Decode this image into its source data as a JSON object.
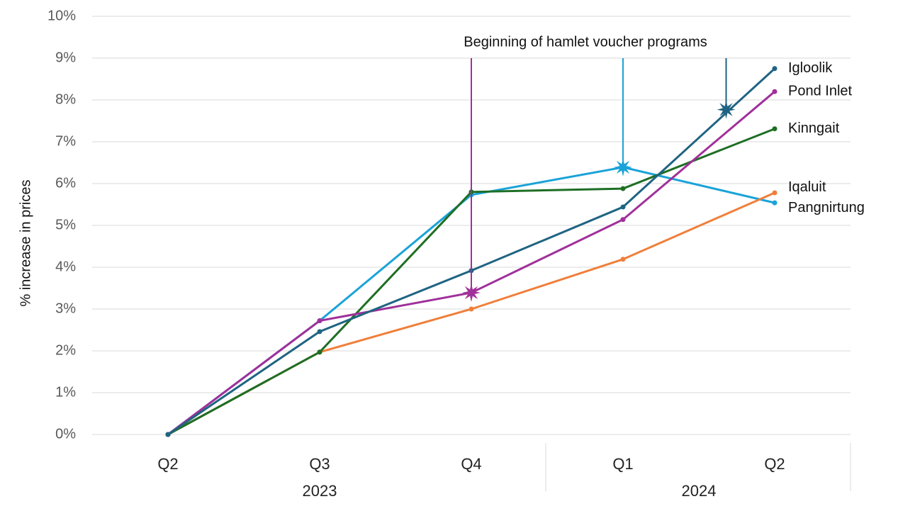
{
  "chart_data": {
    "type": "line",
    "annotation": "Beginning of hamlet voucher programs",
    "y_label": "% increase in prices",
    "categories": [
      "Q2",
      "Q3",
      "Q4",
      "Q1",
      "Q2"
    ],
    "groups": [
      {
        "label": "2023",
        "categories": 3
      },
      {
        "label": "2024",
        "categories": 2
      }
    ],
    "series": [
      {
        "name": "Igloolik",
        "color": "#1f6482",
        "values": [
          0,
          2.46,
          3.92,
          5.44,
          8.75
        ]
      },
      {
        "name": "Pond Inlet",
        "color": "#a0309a",
        "values": [
          0,
          2.72,
          3.39,
          5.14,
          8.2
        ]
      },
      {
        "name": "Kinngait",
        "color": "#1e6e24",
        "values": [
          0,
          1.97,
          5.8,
          5.88,
          7.31
        ]
      },
      {
        "name": "Iqaluit",
        "color": "#f07f3a",
        "values": [
          0,
          1.97,
          3.0,
          4.19,
          5.78
        ]
      },
      {
        "name": "Pangnirtung",
        "color": "#1aa3d8",
        "values": [
          0,
          2.72,
          5.73,
          6.39,
          5.54
        ]
      }
    ],
    "markers": [
      {
        "series": 1,
        "x": 2,
        "y": 3.39
      },
      {
        "series": 4,
        "x": 3,
        "y": 6.39
      },
      {
        "series": 0,
        "x": 3.68,
        "y": 7.77
      }
    ],
    "ylim": [
      0,
      10
    ],
    "yticks": [
      {
        "value": 0,
        "label": "0%"
      },
      {
        "value": 1,
        "label": "1%"
      },
      {
        "value": 2,
        "label": "2%"
      },
      {
        "value": 3,
        "label": "3%"
      },
      {
        "value": 4,
        "label": "4%"
      },
      {
        "value": 5,
        "label": "5%"
      },
      {
        "value": 6,
        "label": "6%"
      },
      {
        "value": 7,
        "label": "7%"
      },
      {
        "value": 8,
        "label": "8%"
      },
      {
        "value": 9,
        "label": "9%"
      },
      {
        "value": 10,
        "label": "10%"
      }
    ],
    "grid": true
  }
}
